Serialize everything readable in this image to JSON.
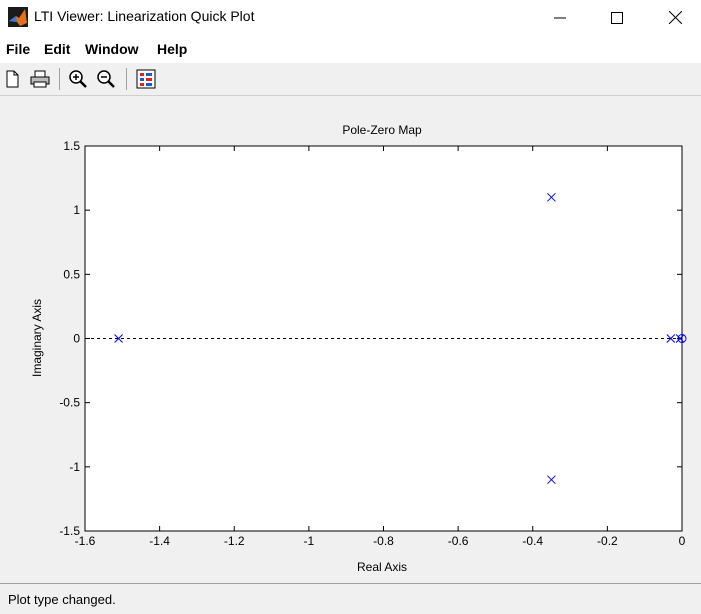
{
  "window": {
    "title": "LTI Viewer: Linearization Quick Plot",
    "minimize_icon": "minimize-icon",
    "maximize_icon": "maximize-icon",
    "close_icon": "close-icon"
  },
  "menu": {
    "items": [
      "File",
      "Edit",
      "Window",
      "Help"
    ]
  },
  "toolbar": {
    "icons": [
      "new-document-icon",
      "print-icon",
      "zoom-in-icon",
      "zoom-out-icon",
      "plot-configuration-icon"
    ]
  },
  "chart_data": {
    "type": "scatter",
    "title": "Pole-Zero Map",
    "xlabel": "Real Axis",
    "ylabel": "Imaginary Axis",
    "xlim": [
      -1.6,
      0
    ],
    "ylim": [
      -1.5,
      1.5
    ],
    "xticks": [
      "-1.6",
      "-1.4",
      "-1.2",
      "-1",
      "-0.8",
      "-0.6",
      "-0.4",
      "-0.2",
      "0"
    ],
    "yticks": [
      "1.5",
      "1",
      "0.5",
      "0",
      "-0.5",
      "-1",
      "-1.5"
    ],
    "grid": false,
    "poles": [
      {
        "x": -1.51,
        "y": 0
      },
      {
        "x": -0.35,
        "y": 1.1
      },
      {
        "x": -0.35,
        "y": -1.1
      },
      {
        "x": -0.03,
        "y": 0
      },
      {
        "x": -0.005,
        "y": 0
      }
    ],
    "zeros": [
      {
        "x": 0,
        "y": 0
      }
    ],
    "marker_color": "#0000ff"
  },
  "status": {
    "text": "Plot type changed."
  }
}
